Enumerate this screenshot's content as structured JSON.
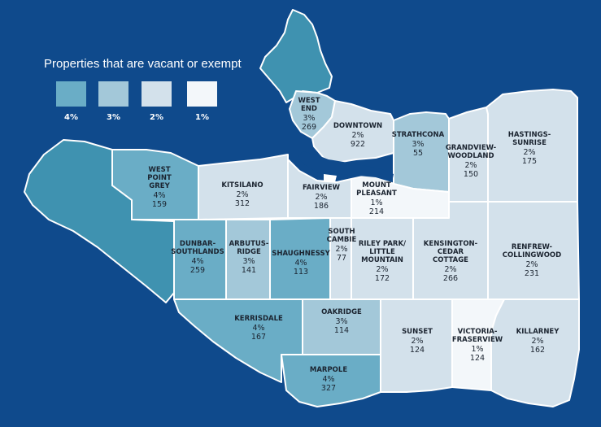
{
  "legend": {
    "title": "Properties that are vacant or exempt",
    "items": [
      {
        "label": "4%",
        "color": "#6aadc6"
      },
      {
        "label": "3%",
        "color": "#a3c8d9"
      },
      {
        "label": "2%",
        "color": "#d3e1eb"
      },
      {
        "label": "1%",
        "color": "#f3f7fa"
      }
    ]
  },
  "colors": {
    "background": "#0f4a8c",
    "stanley_park": "#3f92b0",
    "westside_uel": "#3f92b0",
    "border": "#ffffff"
  },
  "neighbourhoods": [
    {
      "id": "west-end",
      "name": [
        "WEST",
        "END"
      ],
      "percent": "3%",
      "count": "269",
      "level": 3
    },
    {
      "id": "downtown",
      "name": [
        "DOWNTOWN"
      ],
      "percent": "2%",
      "count": "922",
      "level": 2
    },
    {
      "id": "strathcona",
      "name": [
        "STRATHCONA"
      ],
      "percent": "3%",
      "count": "55",
      "level": 3
    },
    {
      "id": "grandview-woodland",
      "name": [
        "GRANDVIEW-",
        "WOODLAND"
      ],
      "percent": "2%",
      "count": "150",
      "level": 2
    },
    {
      "id": "hastings-sunrise",
      "name": [
        "HASTINGS-",
        "SUNRISE"
      ],
      "percent": "2%",
      "count": "175",
      "level": 2
    },
    {
      "id": "west-point-grey",
      "name": [
        "WEST",
        "POINT",
        "GREY"
      ],
      "percent": "4%",
      "count": "159",
      "level": 4
    },
    {
      "id": "kitsilano",
      "name": [
        "KITSILANO"
      ],
      "percent": "2%",
      "count": "312",
      "level": 2
    },
    {
      "id": "fairview",
      "name": [
        "FAIRVIEW"
      ],
      "percent": "2%",
      "count": "186",
      "level": 2
    },
    {
      "id": "mount-pleasant",
      "name": [
        "MOUNT",
        "PLEASANT"
      ],
      "percent": "1%",
      "count": "214",
      "level": 1
    },
    {
      "id": "dunbar-southlands",
      "name": [
        "DUNBAR-",
        "SOUTHLANDS"
      ],
      "percent": "4%",
      "count": "259",
      "level": 4
    },
    {
      "id": "arbutus-ridge",
      "name": [
        "ARBUTUS-",
        "RIDGE"
      ],
      "percent": "3%",
      "count": "141",
      "level": 3
    },
    {
      "id": "shaughnessy",
      "name": [
        "SHAUGHNESSY"
      ],
      "percent": "4%",
      "count": "113",
      "level": 4
    },
    {
      "id": "south-cambie",
      "name": [
        "SOUTH",
        "CAMBIE"
      ],
      "percent": "2%",
      "count": "77",
      "level": 2
    },
    {
      "id": "riley-park",
      "name": [
        "RILEY PARK/",
        "LITTLE",
        "MOUNTAIN"
      ],
      "percent": "2%",
      "count": "172",
      "level": 2
    },
    {
      "id": "kensington-cedar-cottage",
      "name": [
        "KENSINGTON-",
        "CEDAR",
        "COTTAGE"
      ],
      "percent": "2%",
      "count": "266",
      "level": 2
    },
    {
      "id": "renfrew-collingwood",
      "name": [
        "RENFREW-",
        "COLLINGWOOD"
      ],
      "percent": "2%",
      "count": "231",
      "level": 2
    },
    {
      "id": "kerrisdale",
      "name": [
        "KERRISDALE"
      ],
      "percent": "4%",
      "count": "167",
      "level": 4
    },
    {
      "id": "oakridge",
      "name": [
        "OAKRIDGE"
      ],
      "percent": "3%",
      "count": "114",
      "level": 3
    },
    {
      "id": "sunset",
      "name": [
        "SUNSET"
      ],
      "percent": "2%",
      "count": "124",
      "level": 2
    },
    {
      "id": "victoria-fraserview",
      "name": [
        "VICTORIA-",
        "FRASERVIEW"
      ],
      "percent": "1%",
      "count": "124",
      "level": 1
    },
    {
      "id": "killarney",
      "name": [
        "KILLARNEY"
      ],
      "percent": "2%",
      "count": "162",
      "level": 2
    },
    {
      "id": "marpole",
      "name": [
        "MARPOLE"
      ],
      "percent": "4%",
      "count": "327",
      "level": 4
    }
  ]
}
